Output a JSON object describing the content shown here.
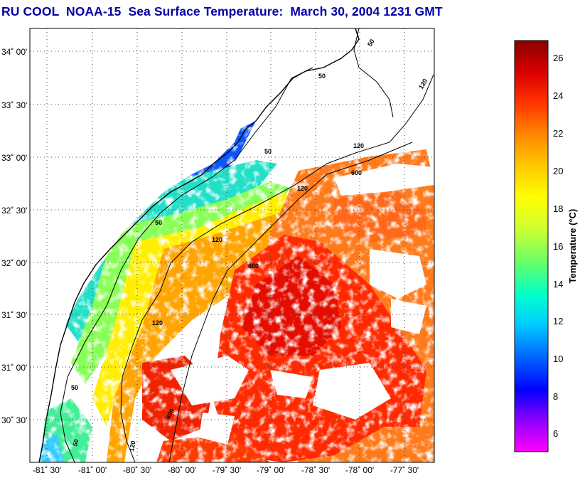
{
  "title": "RU COOL  NOAA-15  Sea Surface Temperature:  March 30, 2004 1231 GMT",
  "map": {
    "lat_labels": [
      "34˚ 00'",
      "33˚ 30'",
      "33˚ 00'",
      "32˚ 30'",
      "32˚ 00'",
      "31˚ 30'",
      "31˚ 00'",
      "30˚ 30'"
    ],
    "lon_labels": [
      "-81˚ 30'",
      "-81˚ 00'",
      "-80˚ 30'",
      "-80˚ 00'",
      "-79˚ 30'",
      "-79˚ 00'",
      "-78˚ 30'",
      "-78˚ 00'",
      "-77˚ 30'"
    ],
    "contour_labels": [
      "50",
      "50",
      "50",
      "50",
      "50",
      "50",
      "120",
      "120",
      "120",
      "120",
      "120",
      "120",
      "600",
      "600",
      "600"
    ]
  },
  "colorbar": {
    "axis_label": "Temperature (°C)",
    "tick_labels": [
      "26",
      "24",
      "22",
      "20",
      "18",
      "16",
      "14",
      "12",
      "10",
      "8",
      "6"
    ],
    "colors": [
      "#ff00ff",
      "#8800ff",
      "#0000ff",
      "#0066ff",
      "#00ccff",
      "#00ffcc",
      "#66ff66",
      "#ccff33",
      "#ffff00",
      "#ffcc00",
      "#ff8800",
      "#ff3300",
      "#dd0000",
      "#880000"
    ]
  }
}
